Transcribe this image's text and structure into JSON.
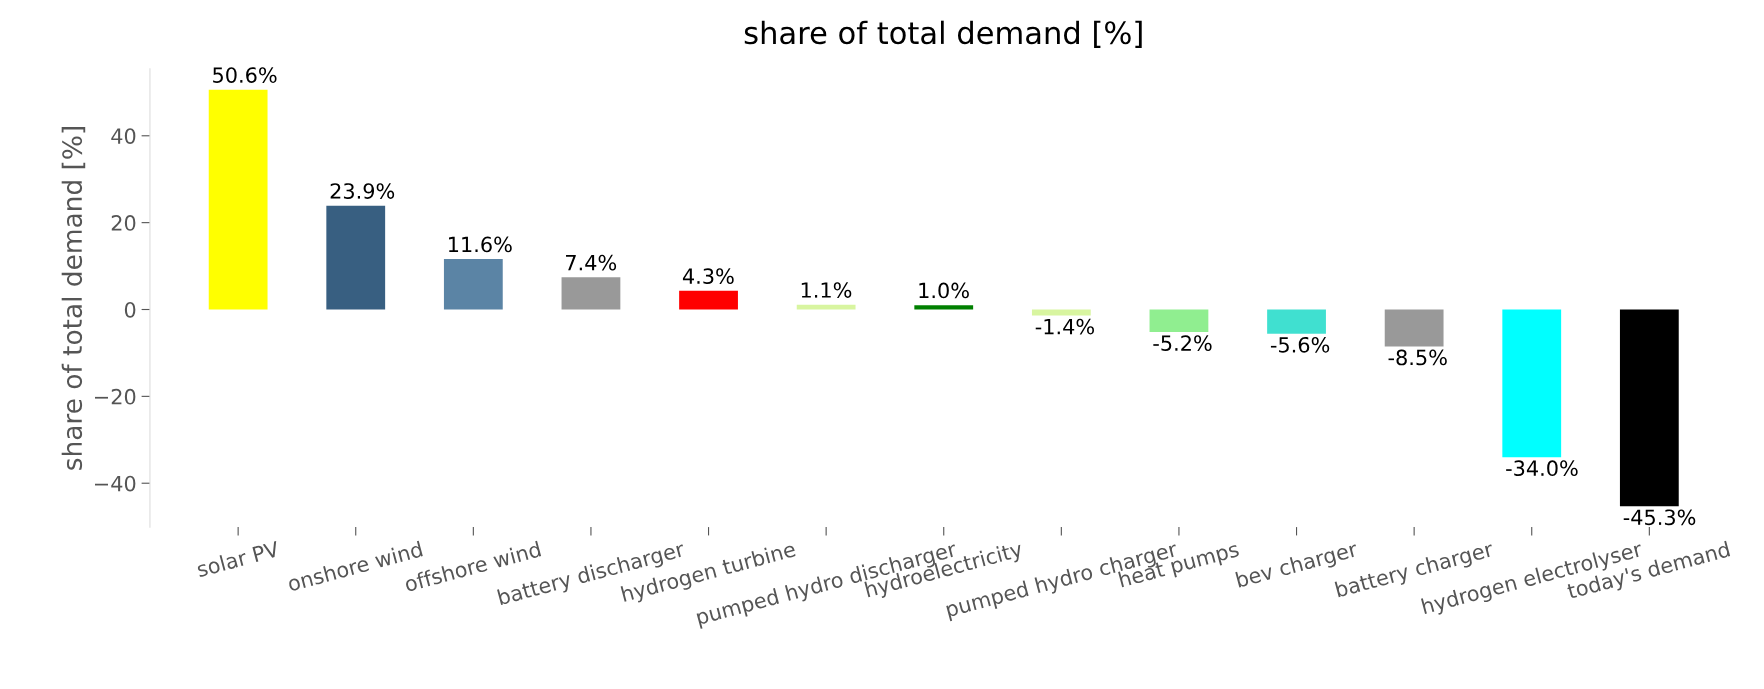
{
  "chart_data": {
    "type": "bar",
    "title": "share of total demand [%]",
    "ylabel": "share of total demand [%]",
    "categories": [
      "solar PV",
      "onshore wind",
      "offshore wind",
      "battery discharger",
      "hydrogen turbine",
      "pumped hydro discharger",
      "hydroelectricity",
      "pumped hydro charger",
      "heat pumps",
      "bev charger",
      "battery charger",
      "hydrogen electrolyser",
      "today's demand"
    ],
    "values": [
      50.6,
      23.9,
      11.6,
      7.4,
      4.3,
      1.1,
      1.0,
      -1.4,
      -5.2,
      -5.6,
      -8.5,
      -34.0,
      -45.3
    ],
    "colors": [
      "#ffff00",
      "#385f81",
      "#5b84a5",
      "#999999",
      "#ff0000",
      "#d8f5a0",
      "#008000",
      "#d8f5a0",
      "#90ee90",
      "#40e0d0",
      "#999999",
      "#00ffff",
      "#000000"
    ],
    "value_labels": [
      "50.6%",
      "23.9%",
      "11.6%",
      "7.4%",
      "4.3%",
      "1.1%",
      "1.0%",
      "-1.4%",
      "-5.2%",
      "-5.6%",
      "-8.5%",
      "-34.0%",
      "-45.3%"
    ],
    "ylim": [
      -50.1,
      55.4
    ],
    "yticks": [
      {
        "value": -40,
        "label": "−40"
      },
      {
        "value": -20,
        "label": "−20"
      },
      0,
      20,
      40
    ],
    "grid": false,
    "legend": false
  }
}
